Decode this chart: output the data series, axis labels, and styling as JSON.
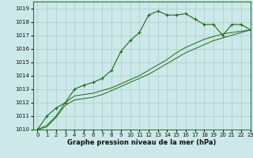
{
  "background_color": "#cce8e8",
  "grid_color": "#aacccc",
  "line_color": "#1a6b1a",
  "title": "Graphe pression niveau de la mer (hPa)",
  "xlim": [
    -0.5,
    23
  ],
  "ylim": [
    1010,
    1019.5
  ],
  "xticks": [
    0,
    1,
    2,
    3,
    4,
    5,
    6,
    7,
    8,
    9,
    10,
    11,
    12,
    13,
    14,
    15,
    16,
    17,
    18,
    19,
    20,
    21,
    22,
    23
  ],
  "yticks": [
    1010,
    1011,
    1012,
    1013,
    1014,
    1015,
    1016,
    1017,
    1018,
    1019
  ],
  "series1_x": [
    0,
    1,
    2,
    3,
    4,
    5,
    6,
    7,
    8,
    9,
    10,
    11,
    12,
    13,
    14,
    15,
    16,
    17,
    18,
    19,
    20,
    21,
    22,
    23
  ],
  "series1_y": [
    1010.0,
    1011.0,
    1011.6,
    1012.0,
    1013.0,
    1013.3,
    1013.5,
    1013.8,
    1014.4,
    1015.8,
    1016.6,
    1017.2,
    1018.5,
    1018.8,
    1018.5,
    1018.5,
    1018.6,
    1018.2,
    1017.8,
    1017.8,
    1017.0,
    1017.8,
    1017.8,
    1017.4
  ],
  "series2_x": [
    0,
    1,
    2,
    3,
    4,
    5,
    6,
    7,
    8,
    9,
    10,
    11,
    12,
    13,
    14,
    15,
    16,
    17,
    18,
    19,
    20,
    21,
    22,
    23
  ],
  "series2_y": [
    1010.0,
    1010.3,
    1011.0,
    1012.0,
    1012.5,
    1012.6,
    1012.7,
    1012.9,
    1013.1,
    1013.4,
    1013.7,
    1014.0,
    1014.4,
    1014.8,
    1015.2,
    1015.7,
    1016.1,
    1016.4,
    1016.7,
    1016.9,
    1017.1,
    1017.2,
    1017.3,
    1017.4
  ],
  "series3_x": [
    0,
    1,
    2,
    3,
    4,
    5,
    6,
    7,
    8,
    9,
    10,
    11,
    12,
    13,
    14,
    15,
    16,
    17,
    18,
    19,
    20,
    21,
    22,
    23
  ],
  "series3_y": [
    1010.0,
    1010.2,
    1010.9,
    1011.8,
    1012.2,
    1012.3,
    1012.4,
    1012.6,
    1012.9,
    1013.2,
    1013.5,
    1013.8,
    1014.1,
    1014.5,
    1014.9,
    1015.3,
    1015.7,
    1016.0,
    1016.3,
    1016.6,
    1016.8,
    1017.0,
    1017.2,
    1017.4
  ],
  "tick_fontsize": 5.0,
  "label_fontsize": 6.0
}
